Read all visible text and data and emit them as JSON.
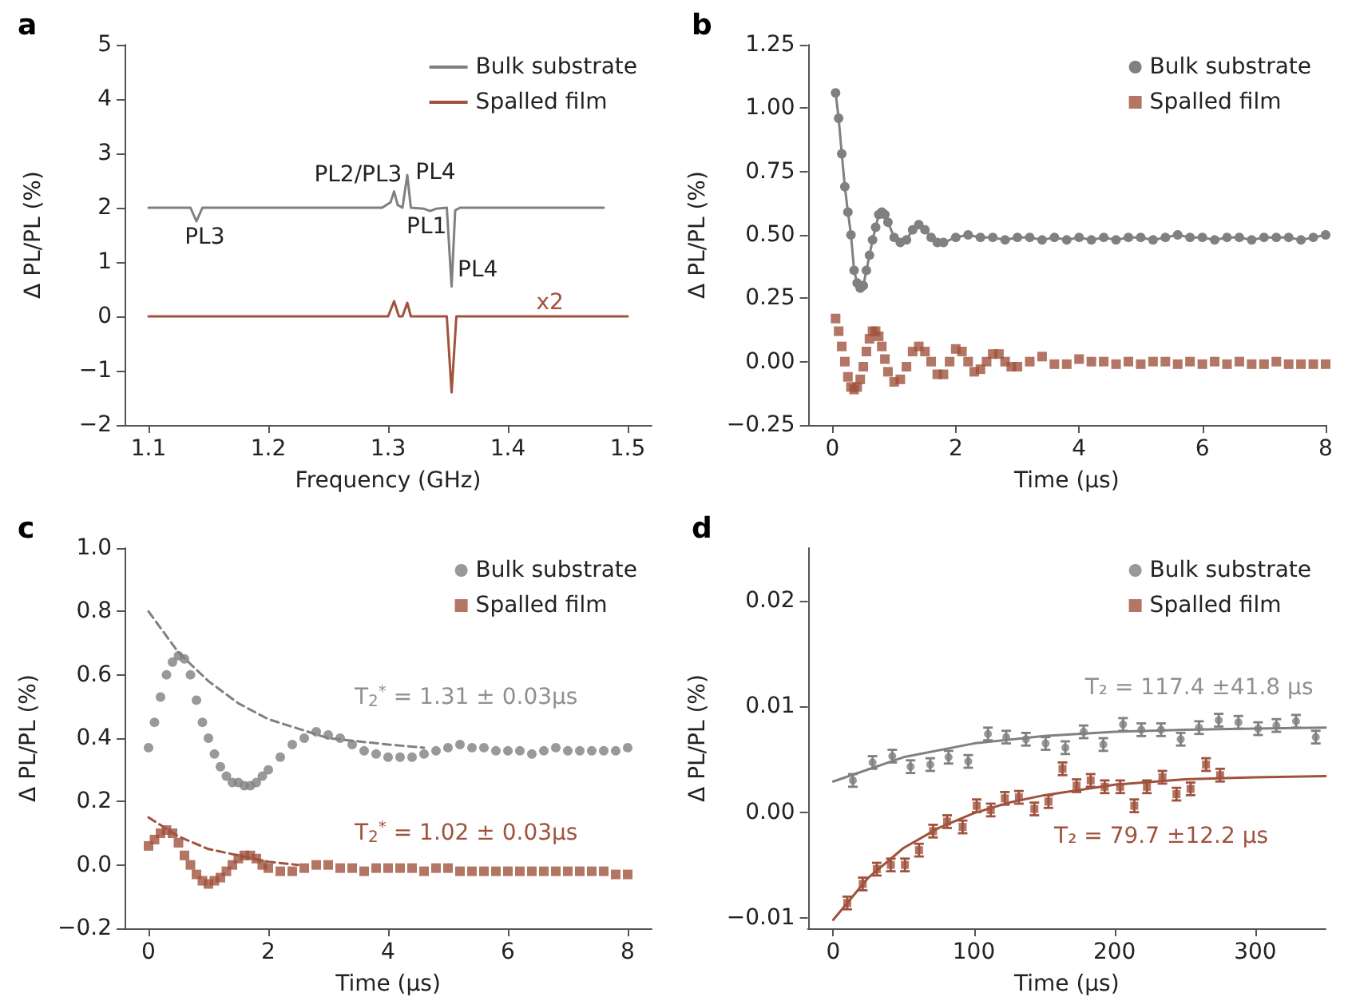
{
  "chart_data": [
    {
      "type": "line",
      "title": "a",
      "xlabel": "Frequency (GHz)",
      "ylabel": "Δ PL/PL (%)",
      "legend": "top right",
      "xlim": [
        1.08,
        1.52
      ],
      "xticks": [
        1.1,
        1.2,
        1.3,
        1.4,
        1.5
      ],
      "ylim": [
        -2,
        5
      ],
      "yticks": [
        {
          "value": -2,
          "label": "−2"
        },
        {
          "value": -1,
          "label": "−1"
        },
        0,
        1,
        2,
        3,
        4,
        5
      ],
      "series": [
        {
          "name": "Bulk substrate",
          "color": "#808080",
          "x": [
            1.1,
            1.135,
            1.14,
            1.145,
            1.2,
            1.25,
            1.295,
            1.302,
            1.305,
            1.308,
            1.312,
            1.316,
            1.319,
            1.33,
            1.335,
            1.34,
            1.349,
            1.353,
            1.356,
            1.36,
            1.4,
            1.45,
            1.48
          ],
          "values": [
            2,
            2,
            1.75,
            2,
            2,
            2,
            2,
            2.1,
            2.3,
            2.05,
            2,
            2.6,
            2,
            1.98,
            1.94,
            1.98,
            2,
            0.55,
            1.95,
            2,
            2,
            2,
            2
          ]
        },
        {
          "name": "Spalled film",
          "color": "#a0523d",
          "x": [
            1.1,
            1.2,
            1.3,
            1.305,
            1.309,
            1.312,
            1.316,
            1.319,
            1.349,
            1.353,
            1.357,
            1.4,
            1.45,
            1.5
          ],
          "values": [
            0,
            0,
            0,
            0.28,
            0,
            0,
            0.25,
            0,
            0,
            -1.4,
            0,
            0,
            0,
            0
          ]
        }
      ],
      "annotations": [
        "PL3",
        "PL2/PL3",
        "PL4",
        "PL1",
        "PL4",
        "x2"
      ]
    },
    {
      "type": "line",
      "title": "b",
      "xlabel": "Time (µs)",
      "ylabel": "Δ PL/PL (%)",
      "legend": "top right",
      "xlim": [
        -0.4,
        8
      ],
      "xticks": [
        0,
        2,
        4,
        6,
        8
      ],
      "ylim": [
        -0.25,
        1.25
      ],
      "yticks": [
        {
          "value": -0.25,
          "label": "−0.25"
        },
        {
          "value": 0,
          "label": "0.00"
        },
        {
          "value": 0.25,
          "label": "0.25"
        },
        {
          "value": 0.5,
          "label": "0.50"
        },
        {
          "value": 0.75,
          "label": "0.75"
        },
        {
          "value": 1,
          "label": "1.00"
        },
        {
          "value": 1.25,
          "label": "1.25"
        }
      ],
      "series": [
        {
          "name": "Bulk substrate",
          "color": "#808080",
          "marker": "circle",
          "x": [
            0.05,
            0.1,
            0.15,
            0.2,
            0.25,
            0.3,
            0.35,
            0.4,
            0.45,
            0.5,
            0.55,
            0.6,
            0.65,
            0.7,
            0.75,
            0.8,
            0.85,
            0.9,
            1.0,
            1.1,
            1.2,
            1.3,
            1.4,
            1.5,
            1.6,
            1.7,
            1.8,
            2.0,
            2.2,
            2.4,
            2.6,
            2.8,
            3.0,
            3.2,
            3.4,
            3.6,
            3.8,
            4.0,
            4.2,
            4.4,
            4.6,
            4.8,
            5.0,
            5.2,
            5.4,
            5.6,
            5.8,
            6.0,
            6.2,
            6.4,
            6.6,
            6.8,
            7.0,
            7.2,
            7.4,
            7.6,
            7.8,
            8.0
          ],
          "values": [
            1.06,
            0.96,
            0.82,
            0.69,
            0.59,
            0.5,
            0.36,
            0.31,
            0.29,
            0.3,
            0.36,
            0.42,
            0.48,
            0.53,
            0.58,
            0.59,
            0.58,
            0.55,
            0.49,
            0.47,
            0.48,
            0.52,
            0.54,
            0.52,
            0.49,
            0.47,
            0.47,
            0.49,
            0.5,
            0.49,
            0.49,
            0.48,
            0.49,
            0.49,
            0.48,
            0.49,
            0.48,
            0.49,
            0.48,
            0.49,
            0.48,
            0.49,
            0.49,
            0.48,
            0.49,
            0.5,
            0.49,
            0.49,
            0.48,
            0.49,
            0.49,
            0.48,
            0.49,
            0.49,
            0.49,
            0.48,
            0.49,
            0.5
          ]
        },
        {
          "name": "Spalled film",
          "type": "scatter",
          "color": "#a0523d",
          "marker": "square",
          "x": [
            0.05,
            0.1,
            0.15,
            0.2,
            0.25,
            0.3,
            0.35,
            0.4,
            0.45,
            0.5,
            0.55,
            0.6,
            0.65,
            0.7,
            0.75,
            0.8,
            0.85,
            0.9,
            1.0,
            1.1,
            1.2,
            1.3,
            1.4,
            1.5,
            1.6,
            1.7,
            1.8,
            1.9,
            2.0,
            2.1,
            2.2,
            2.3,
            2.4,
            2.5,
            2.6,
            2.7,
            2.8,
            2.9,
            3.0,
            3.2,
            3.4,
            3.6,
            3.8,
            4.0,
            4.2,
            4.4,
            4.6,
            4.8,
            5.0,
            5.2,
            5.4,
            5.6,
            5.8,
            6.0,
            6.2,
            6.4,
            6.6,
            6.8,
            7.0,
            7.2,
            7.4,
            7.6,
            7.8,
            8.0
          ],
          "values": [
            0.17,
            0.12,
            0.06,
            0.0,
            -0.06,
            -0.1,
            -0.11,
            -0.1,
            -0.07,
            -0.02,
            0.04,
            0.09,
            0.12,
            0.12,
            0.1,
            0.06,
            0.01,
            -0.04,
            -0.08,
            -0.07,
            -0.02,
            0.04,
            0.06,
            0.04,
            0.0,
            -0.05,
            -0.05,
            0.0,
            0.05,
            0.04,
            0.0,
            -0.04,
            -0.03,
            0.0,
            0.03,
            0.03,
            0.0,
            -0.02,
            -0.02,
            0.0,
            0.02,
            -0.01,
            -0.01,
            0.01,
            0.0,
            0.0,
            -0.01,
            0.0,
            -0.01,
            0.0,
            0.0,
            -0.01,
            0.0,
            -0.01,
            0.0,
            -0.01,
            0.0,
            -0.01,
            -0.01,
            0.0,
            -0.01,
            -0.01,
            -0.01,
            -0.01
          ]
        }
      ]
    },
    {
      "type": "scatter",
      "title": "c",
      "xlabel": "Time (µs)",
      "ylabel": "Δ PL/PL (%)",
      "legend": "top right",
      "xlim": [
        -0.4,
        8.4
      ],
      "xticks": [
        0,
        2,
        4,
        6,
        8
      ],
      "ylim": [
        -0.2,
        1.0
      ],
      "yticks": [
        {
          "value": -0.2,
          "label": "−0.2"
        },
        {
          "value": 0,
          "label": "0.0"
        },
        {
          "value": 0.2,
          "label": "0.2"
        },
        {
          "value": 0.4,
          "label": "0.4"
        },
        {
          "value": 0.6,
          "label": "0.6"
        },
        {
          "value": 0.8,
          "label": "0.8"
        },
        {
          "value": 1,
          "label": "1.0"
        }
      ],
      "series": [
        {
          "name": "Bulk substrate",
          "color": "#808080",
          "marker": "circle",
          "x": [
            0,
            0.1,
            0.2,
            0.3,
            0.4,
            0.5,
            0.6,
            0.7,
            0.8,
            0.9,
            1.0,
            1.1,
            1.2,
            1.3,
            1.4,
            1.5,
            1.6,
            1.7,
            1.8,
            1.9,
            2.0,
            2.2,
            2.4,
            2.6,
            2.8,
            3.0,
            3.2,
            3.4,
            3.6,
            3.8,
            4.0,
            4.2,
            4.4,
            4.6,
            4.8,
            5.0,
            5.2,
            5.4,
            5.6,
            5.8,
            6.0,
            6.2,
            6.4,
            6.6,
            6.8,
            7.0,
            7.2,
            7.4,
            7.6,
            7.8,
            8.0
          ],
          "values": [
            0.37,
            0.45,
            0.53,
            0.6,
            0.64,
            0.66,
            0.65,
            0.6,
            0.52,
            0.45,
            0.4,
            0.35,
            0.31,
            0.28,
            0.26,
            0.26,
            0.25,
            0.25,
            0.26,
            0.28,
            0.3,
            0.34,
            0.38,
            0.4,
            0.42,
            0.41,
            0.4,
            0.38,
            0.36,
            0.35,
            0.34,
            0.34,
            0.34,
            0.35,
            0.36,
            0.37,
            0.38,
            0.37,
            0.37,
            0.36,
            0.36,
            0.36,
            0.35,
            0.36,
            0.37,
            0.36,
            0.36,
            0.36,
            0.36,
            0.36,
            0.37
          ]
        },
        {
          "name": "Spalled film",
          "color": "#a0523d",
          "marker": "square",
          "x": [
            0,
            0.1,
            0.2,
            0.3,
            0.4,
            0.5,
            0.6,
            0.7,
            0.8,
            0.9,
            1.0,
            1.1,
            1.2,
            1.3,
            1.4,
            1.5,
            1.6,
            1.7,
            1.8,
            1.9,
            2.0,
            2.2,
            2.4,
            2.6,
            2.8,
            3.0,
            3.2,
            3.4,
            3.6,
            3.8,
            4.0,
            4.2,
            4.4,
            4.6,
            4.8,
            5.0,
            5.2,
            5.4,
            5.6,
            5.8,
            6.0,
            6.2,
            6.4,
            6.6,
            6.8,
            7.0,
            7.2,
            7.4,
            7.6,
            7.8,
            8.0
          ],
          "values": [
            0.06,
            0.08,
            0.1,
            0.11,
            0.1,
            0.07,
            0.03,
            0.0,
            -0.03,
            -0.05,
            -0.06,
            -0.05,
            -0.04,
            -0.02,
            0.0,
            0.02,
            0.03,
            0.03,
            0.02,
            0.0,
            -0.01,
            -0.02,
            -0.02,
            -0.01,
            0.0,
            0.0,
            -0.01,
            -0.01,
            -0.02,
            -0.01,
            -0.01,
            -0.01,
            -0.01,
            -0.02,
            -0.01,
            -0.01,
            -0.02,
            -0.02,
            -0.02,
            -0.02,
            -0.02,
            -0.02,
            -0.02,
            -0.02,
            -0.02,
            -0.02,
            -0.02,
            -0.02,
            -0.02,
            -0.03,
            -0.03
          ]
        },
        {
          "type": "line",
          "color": "#808080",
          "line_style": "dashed",
          "x": [
            0,
            0.5,
            1,
            1.5,
            2,
            2.5,
            3,
            3.5,
            4,
            4.6
          ],
          "values": [
            0.8,
            0.67,
            0.58,
            0.51,
            0.46,
            0.43,
            0.4,
            0.39,
            0.38,
            0.37
          ]
        },
        {
          "type": "line",
          "color": "#a0523d",
          "line_style": "dashed",
          "x": [
            0,
            0.5,
            1,
            1.5,
            2,
            2.5
          ],
          "values": [
            0.15,
            0.09,
            0.05,
            0.03,
            0.01,
            0.0
          ]
        }
      ],
      "annotations": [
        "T$_{2}$$^{*}$ = 1.31 ± 0.03μs",
        "T$_{2}$$^{*}$ = 1.02 ± 0.03μs"
      ]
    },
    {
      "type": "scatter",
      "title": "d",
      "xlabel": "Time (µs)",
      "ylabel": "Δ PL/PL (%)",
      "legend": "top right",
      "xlim": [
        -18,
        350
      ],
      "xticks": [
        0,
        100,
        200,
        300
      ],
      "ylim": [
        -0.011,
        0.025
      ],
      "yticks": [
        {
          "value": -0.01,
          "label": "−0.01"
        },
        {
          "value": 0,
          "label": "0.00"
        },
        {
          "value": 0.01,
          "label": "0.01"
        },
        {
          "value": 0.02,
          "label": "0.02"
        }
      ],
      "series": [
        {
          "name": "Bulk substrate",
          "color": "#808080",
          "marker": "circle",
          "x": [
            14,
            28,
            42,
            55,
            69,
            82,
            96,
            110,
            123,
            137,
            151,
            165,
            178,
            192,
            206,
            219,
            233,
            247,
            260,
            274,
            288,
            302,
            315,
            329,
            343
          ],
          "values": [
            0.003,
            0.0047,
            0.0053,
            0.0043,
            0.0045,
            0.0052,
            0.0048,
            0.0074,
            0.0071,
            0.0069,
            0.0065,
            0.0061,
            0.0076,
            0.0064,
            0.0083,
            0.0078,
            0.0078,
            0.0069,
            0.008,
            0.0087,
            0.0085,
            0.0079,
            0.0082,
            0.0086,
            0.0071
          ],
          "errors": [
            0.0006,
            0.0006,
            0.0006,
            0.0006,
            0.0006,
            0.0006,
            0.0006,
            0.0006,
            0.0006,
            0.0006,
            0.0006,
            0.0006,
            0.0006,
            0.0006,
            0.0006,
            0.0006,
            0.0006,
            0.0006,
            0.0006,
            0.0006,
            0.0006,
            0.0006,
            0.0006,
            0.0006,
            0.0006
          ]
        },
        {
          "name": "Spalled film",
          "color": "#a0523d",
          "marker": "square",
          "x": [
            10,
            21,
            31,
            41,
            51,
            61,
            71,
            81,
            92,
            102,
            112,
            122,
            132,
            143,
            153,
            163,
            173,
            183,
            193,
            204,
            214,
            223,
            234,
            244,
            254,
            265,
            275
          ],
          "values": [
            -0.0086,
            -0.0068,
            -0.0054,
            -0.005,
            -0.005,
            -0.0036,
            -0.0018,
            -0.0009,
            -0.0014,
            0.0006,
            0.0002,
            0.0013,
            0.0014,
            0.0003,
            0.001,
            0.0041,
            0.0025,
            0.003,
            0.0024,
            0.0024,
            0.0006,
            0.0024,
            0.0033,
            0.0017,
            0.0022,
            0.0045,
            0.0035
          ],
          "errors": [
            0.0006,
            0.0006,
            0.0006,
            0.0006,
            0.0006,
            0.0006,
            0.0006,
            0.0006,
            0.0006,
            0.0006,
            0.0006,
            0.0006,
            0.0006,
            0.0006,
            0.0006,
            0.0006,
            0.0006,
            0.0006,
            0.0006,
            0.0006,
            0.0006,
            0.0006,
            0.0006,
            0.0006,
            0.0006,
            0.0006,
            0.0006
          ]
        },
        {
          "type": "line",
          "color": "#808080",
          "line_style": "solid",
          "x": [
            0,
            50,
            100,
            150,
            200,
            250,
            300,
            350
          ],
          "values": [
            0.0029,
            0.0052,
            0.0065,
            0.0072,
            0.0076,
            0.0078,
            0.0079,
            0.008
          ]
        },
        {
          "type": "line",
          "color": "#a0523d",
          "line_style": "solid",
          "x": [
            0,
            25,
            50,
            75,
            100,
            125,
            150,
            200,
            250,
            300,
            350
          ],
          "values": [
            -0.0102,
            -0.0062,
            -0.0034,
            -0.0015,
            -0.0001,
            0.0009,
            0.0016,
            0.0026,
            0.0031,
            0.0033,
            0.0034
          ]
        }
      ],
      "annotations": [
        "T₂ = 117.4 ±41.8 µs",
        "T₂ = 79.7 ±12.2 µs"
      ]
    }
  ]
}
